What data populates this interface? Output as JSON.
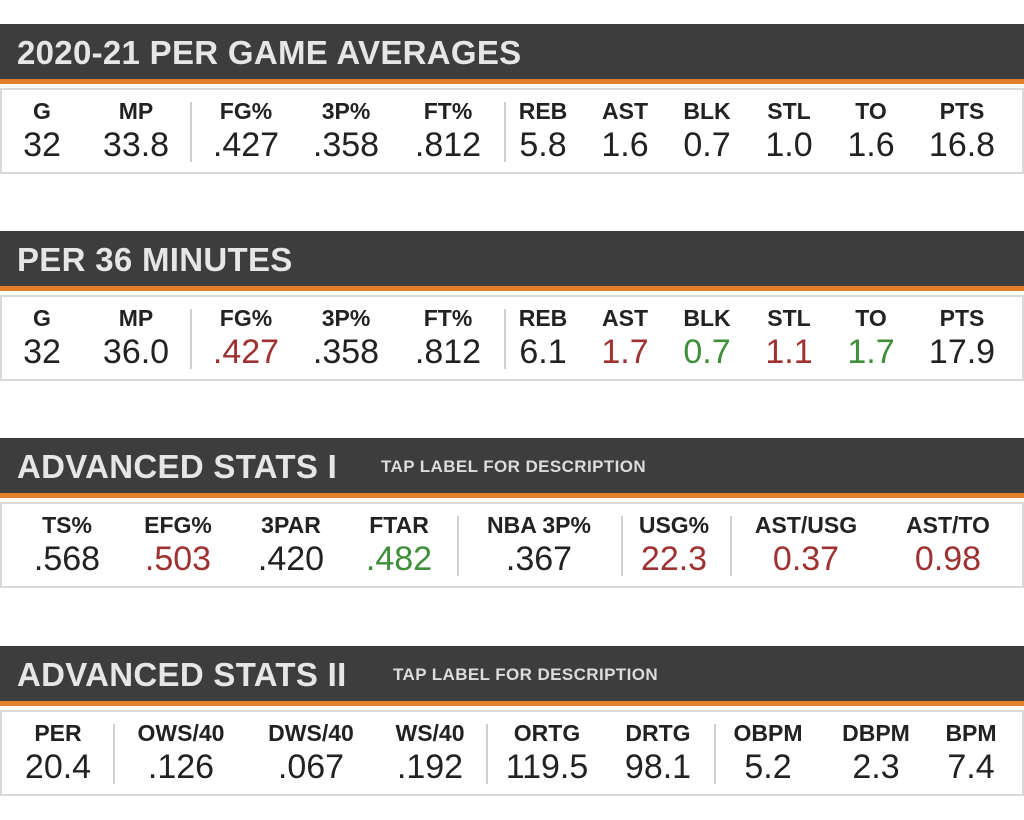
{
  "sections": [
    {
      "title": "2020-21 PER GAME AVERAGES",
      "subtitle": "",
      "stats": [
        {
          "label": "G",
          "value": "32",
          "tone": ""
        },
        {
          "label": "MP",
          "value": "33.8",
          "tone": ""
        },
        {
          "label": "FG%",
          "value": ".427",
          "tone": ""
        },
        {
          "label": "3P%",
          "value": ".358",
          "tone": ""
        },
        {
          "label": "FT%",
          "value": ".812",
          "tone": ""
        },
        {
          "label": "REB",
          "value": "5.8",
          "tone": ""
        },
        {
          "label": "AST",
          "value": "1.6",
          "tone": ""
        },
        {
          "label": "BLK",
          "value": "0.7",
          "tone": ""
        },
        {
          "label": "STL",
          "value": "1.0",
          "tone": ""
        },
        {
          "label": "TO",
          "value": "1.6",
          "tone": ""
        },
        {
          "label": "PTS",
          "value": "16.8",
          "tone": ""
        }
      ]
    },
    {
      "title": "PER 36 MINUTES",
      "subtitle": "",
      "stats": [
        {
          "label": "G",
          "value": "32",
          "tone": ""
        },
        {
          "label": "MP",
          "value": "36.0",
          "tone": ""
        },
        {
          "label": "FG%",
          "value": ".427",
          "tone": "red"
        },
        {
          "label": "3P%",
          "value": ".358",
          "tone": ""
        },
        {
          "label": "FT%",
          "value": ".812",
          "tone": ""
        },
        {
          "label": "REB",
          "value": "6.1",
          "tone": ""
        },
        {
          "label": "AST",
          "value": "1.7",
          "tone": "red"
        },
        {
          "label": "BLK",
          "value": "0.7",
          "tone": "green"
        },
        {
          "label": "STL",
          "value": "1.1",
          "tone": "red"
        },
        {
          "label": "TO",
          "value": "1.7",
          "tone": "green"
        },
        {
          "label": "PTS",
          "value": "17.9",
          "tone": ""
        }
      ]
    },
    {
      "title": "ADVANCED STATS I",
      "subtitle": "TAP LABEL FOR DESCRIPTION",
      "stats": [
        {
          "label": "TS%",
          "value": ".568",
          "tone": ""
        },
        {
          "label": "EFG%",
          "value": ".503",
          "tone": "red"
        },
        {
          "label": "3PAR",
          "value": ".420",
          "tone": ""
        },
        {
          "label": "FTAR",
          "value": ".482",
          "tone": "green"
        },
        {
          "label": "NBA 3P%",
          "value": ".367",
          "tone": ""
        },
        {
          "label": "USG%",
          "value": "22.3",
          "tone": "red"
        },
        {
          "label": "AST/USG",
          "value": "0.37",
          "tone": "red"
        },
        {
          "label": "AST/TO",
          "value": "0.98",
          "tone": "red"
        }
      ]
    },
    {
      "title": "ADVANCED STATS II",
      "subtitle": "TAP LABEL FOR DESCRIPTION",
      "stats": [
        {
          "label": "PER",
          "value": "20.4",
          "tone": ""
        },
        {
          "label": "OWS/40",
          "value": ".126",
          "tone": ""
        },
        {
          "label": "DWS/40",
          "value": ".067",
          "tone": ""
        },
        {
          "label": "WS/40",
          "value": ".192",
          "tone": ""
        },
        {
          "label": "ORTG",
          "value": "119.5",
          "tone": ""
        },
        {
          "label": "DRTG",
          "value": "98.1",
          "tone": ""
        },
        {
          "label": "OBPM",
          "value": "5.2",
          "tone": ""
        },
        {
          "label": "DBPM",
          "value": "2.3",
          "tone": ""
        },
        {
          "label": "BPM",
          "value": "7.4",
          "tone": ""
        }
      ]
    }
  ],
  "colors": {
    "header_bg": "#3d3d3d",
    "accent": "#e37f2a",
    "negative": "#9e3232",
    "positive": "#3f8f3a"
  }
}
